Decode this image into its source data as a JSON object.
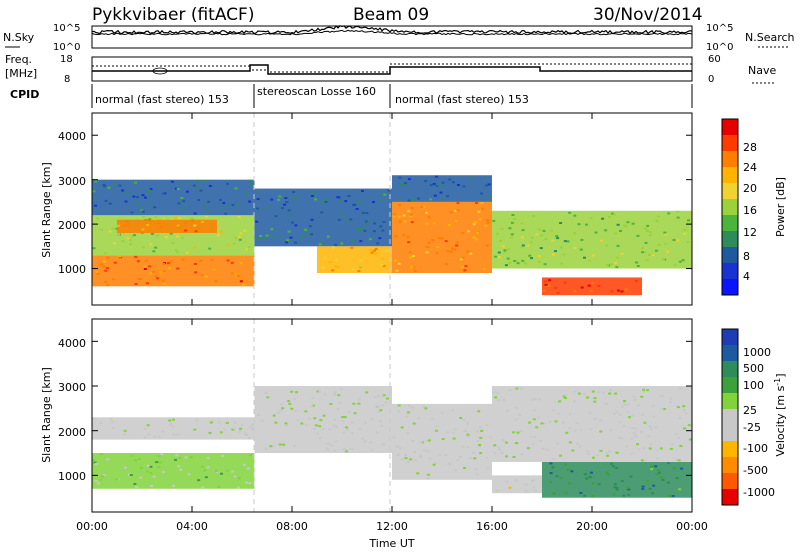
{
  "header": {
    "station": "Pykkvibaer (fitACF)",
    "beam": "Beam 09",
    "date": "30/Nov/2014"
  },
  "panels": {
    "nsky": {
      "label": "N.Sky",
      "right_label": "N.Search",
      "left_ticks": [
        "10^5",
        "10^0"
      ],
      "right_ticks": [
        "10^5",
        "10^0"
      ]
    },
    "freq": {
      "label_line1": "Freq.",
      "label_line2": "[MHz]",
      "left_ticks": [
        "18",
        "8"
      ],
      "right_ticks": [
        "60",
        "0"
      ],
      "right_label": "Nave"
    },
    "cpid": {
      "label": "CPID",
      "segments": [
        {
          "text": "normal (fast stereo) 153",
          "start": 0,
          "end": 6.5
        },
        {
          "text": "stereoscan Losse 160",
          "start": 6.5,
          "end": 12.0
        },
        {
          "text": "normal (fast stereo) 153",
          "start": 12.0,
          "end": 24.0
        }
      ]
    }
  },
  "axes": {
    "ylabel": "Slant Range [km]",
    "y_ticks": [
      "1000",
      "2000",
      "3000",
      "4000"
    ],
    "x_ticks": [
      "00:00",
      "04:00",
      "08:00",
      "12:00",
      "16:00",
      "20:00",
      "00:00"
    ],
    "xlabel": "Time UT"
  },
  "colorbars": {
    "power": {
      "label": "Power [dB]",
      "ticks": [
        "28",
        "24",
        "20",
        "16",
        "12",
        "8",
        "4"
      ],
      "colors": [
        "#e60000",
        "#ff3b00",
        "#ff7d00",
        "#ffb400",
        "#f0d232",
        "#9bd23c",
        "#4bb43c",
        "#2d8c5a",
        "#1e5aa0",
        "#1932d2",
        "#0a14ff"
      ]
    },
    "velocity": {
      "label": "Velocity [m s",
      "label_sup": "-1",
      "label_end": "]",
      "ticks": [
        "1000",
        "500",
        "100",
        "25",
        "-25",
        "-100",
        "-500",
        "-1000"
      ],
      "colors": [
        "#1e3cb4",
        "#1e5aa0",
        "#2d8c5a",
        "#3ca03c",
        "#82d23c",
        "#c8c8c8",
        "#c8c8c8",
        "#ffb400",
        "#ff8c00",
        "#ff5a00",
        "#e60000"
      ]
    }
  },
  "chart_data": [
    {
      "type": "heatmap",
      "name": "Power",
      "x_range_hours": [
        0,
        24
      ],
      "y_range_km": [
        180,
        4500
      ],
      "colorbar_range": [
        0,
        30
      ],
      "colorbar_unit": "dB",
      "regions": [
        {
          "x": [
            0,
            6.5
          ],
          "y": [
            600,
            1300
          ],
          "value": 24
        },
        {
          "x": [
            0,
            6.5
          ],
          "y": [
            1300,
            2200
          ],
          "value": 16
        },
        {
          "x": [
            1,
            5
          ],
          "y": [
            1800,
            2100
          ],
          "value": 22
        },
        {
          "x": [
            0,
            6.5
          ],
          "y": [
            2200,
            3000
          ],
          "value": 8
        },
        {
          "x": [
            6.5,
            12
          ],
          "y": [
            1500,
            2800
          ],
          "value": 8
        },
        {
          "x": [
            9,
            12
          ],
          "y": [
            900,
            1500
          ],
          "value": 20
        },
        {
          "x": [
            12,
            16
          ],
          "y": [
            900,
            2500
          ],
          "value": 22
        },
        {
          "x": [
            12,
            16
          ],
          "y": [
            2500,
            3100
          ],
          "value": 8
        },
        {
          "x": [
            16,
            24
          ],
          "y": [
            1000,
            2300
          ],
          "value": 14
        },
        {
          "x": [
            18,
            22
          ],
          "y": [
            400,
            800
          ],
          "value": 26
        }
      ]
    },
    {
      "type": "heatmap",
      "name": "Velocity",
      "x_range_hours": [
        0,
        24
      ],
      "y_range_km": [
        180,
        4500
      ],
      "colorbar_range": [
        -1000,
        1000
      ],
      "colorbar_unit": "m s-1",
      "regions": [
        {
          "x": [
            0,
            6.5
          ],
          "y": [
            700,
            1500
          ],
          "value": 100
        },
        {
          "x": [
            0,
            6.5
          ],
          "y": [
            1800,
            2300
          ],
          "value": 0
        },
        {
          "x": [
            6.5,
            12
          ],
          "y": [
            1500,
            3000
          ],
          "value": 0
        },
        {
          "x": [
            12,
            16
          ],
          "y": [
            900,
            2600
          ],
          "value": 0
        },
        {
          "x": [
            16,
            18
          ],
          "y": [
            600,
            1000
          ],
          "value": -100
        },
        {
          "x": [
            18,
            24
          ],
          "y": [
            500,
            1300
          ],
          "value": 500
        },
        {
          "x": [
            16,
            24
          ],
          "y": [
            1300,
            3000
          ],
          "value": 0
        }
      ]
    }
  ]
}
